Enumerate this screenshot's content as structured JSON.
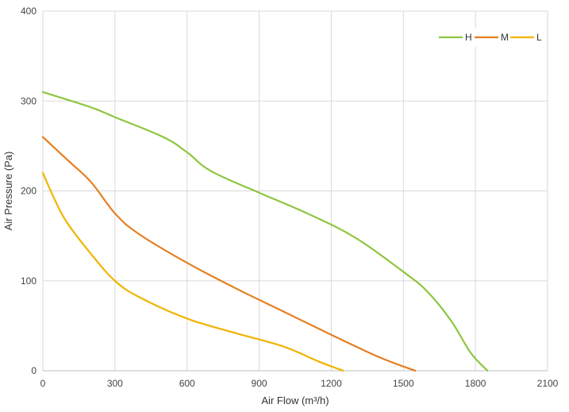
{
  "chart_data": {
    "type": "line",
    "xlabel": "Air Flow  (m³/h)",
    "ylabel": "Air Pressure  (Pa)",
    "xlim": [
      0,
      2100
    ],
    "ylim": [
      0,
      400
    ],
    "xticks": [
      0,
      300,
      600,
      900,
      1200,
      1500,
      1800,
      2100
    ],
    "yticks": [
      0,
      100,
      200,
      300,
      400
    ],
    "grid": true,
    "legend_position": "top-right",
    "series": [
      {
        "name": "H",
        "color": "#8dc63f",
        "points": [
          [
            0,
            310
          ],
          [
            200,
            293
          ],
          [
            300,
            282
          ],
          [
            500,
            260
          ],
          [
            600,
            243
          ],
          [
            700,
            222
          ],
          [
            900,
            198
          ],
          [
            1100,
            175
          ],
          [
            1300,
            148
          ],
          [
            1500,
            110
          ],
          [
            1600,
            88
          ],
          [
            1700,
            55
          ],
          [
            1780,
            20
          ],
          [
            1850,
            0
          ]
        ]
      },
      {
        "name": "M",
        "color": "#e67e22",
        "points": [
          [
            0,
            260
          ],
          [
            100,
            235
          ],
          [
            200,
            210
          ],
          [
            300,
            175
          ],
          [
            400,
            152
          ],
          [
            600,
            120
          ],
          [
            800,
            92
          ],
          [
            1000,
            66
          ],
          [
            1200,
            40
          ],
          [
            1400,
            15
          ],
          [
            1550,
            0
          ]
        ]
      },
      {
        "name": "L",
        "color": "#f0b400",
        "points": [
          [
            0,
            220
          ],
          [
            50,
            190
          ],
          [
            100,
            165
          ],
          [
            200,
            130
          ],
          [
            300,
            100
          ],
          [
            400,
            82
          ],
          [
            600,
            58
          ],
          [
            800,
            42
          ],
          [
            1000,
            27
          ],
          [
            1150,
            10
          ],
          [
            1250,
            0
          ]
        ]
      }
    ]
  }
}
